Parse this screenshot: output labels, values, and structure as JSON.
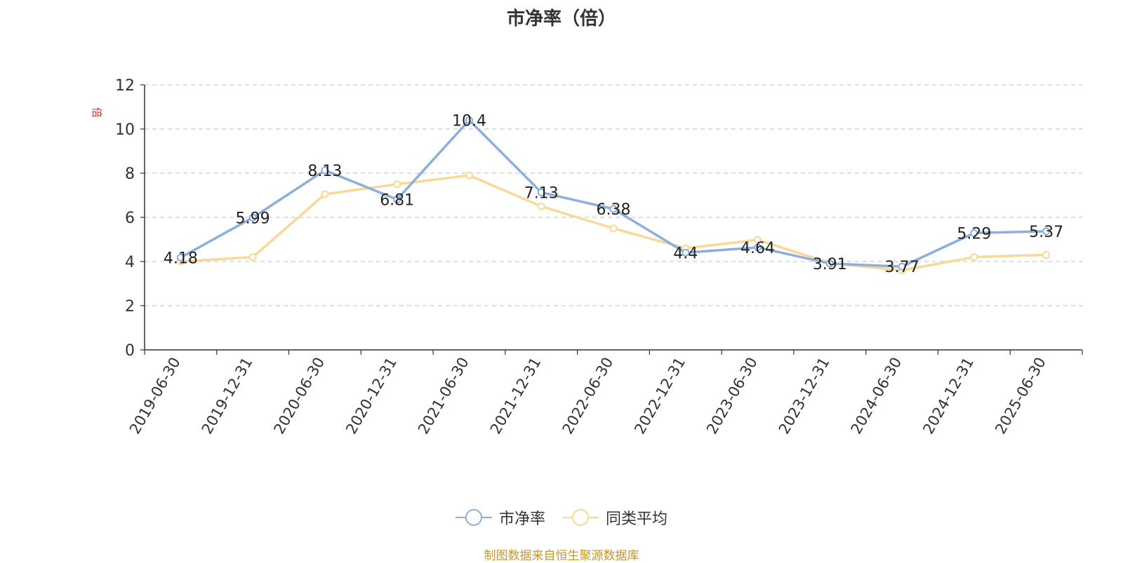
{
  "title": "市净率（倍）",
  "source_note": "制图数据来自恒生聚源数据库",
  "colors": {
    "series_1": "#8eaedb",
    "series_2": "#f9d99a",
    "axis": "#333333",
    "grid": "#cccccc",
    "unit": "#e0302a",
    "footer": "#c8962a"
  },
  "chart_data": {
    "type": "line",
    "title": "市净率（倍）",
    "ylabel": "倍",
    "xlabel": "",
    "ylim": [
      0,
      12
    ],
    "y_ticks": [
      0,
      2,
      4,
      6,
      8,
      10,
      12
    ],
    "grid": "horizontal dashed",
    "legend_position": "bottom-center",
    "categories": [
      "2019-06-30",
      "2019-12-31",
      "2020-06-30",
      "2020-12-31",
      "2021-06-30",
      "2021-12-31",
      "2022-06-30",
      "2022-12-31",
      "2023-06-30",
      "2023-12-31",
      "2024-06-30",
      "2024-12-31",
      "2025-06-30"
    ],
    "series": [
      {
        "name": "市净率",
        "values": [
          4.18,
          5.99,
          8.13,
          6.81,
          10.4,
          7.13,
          6.38,
          4.4,
          4.64,
          3.91,
          3.77,
          5.29,
          5.37
        ],
        "labels": [
          "4.18",
          "5.99",
          "8.13",
          "6.81",
          "10.4",
          "7.13",
          "6.38",
          "4.4",
          "4.64",
          "3.91",
          "3.77",
          "5.29",
          "5.37"
        ]
      },
      {
        "name": "同类平均",
        "values": [
          4.0,
          4.2,
          7.05,
          7.5,
          7.9,
          6.5,
          5.5,
          4.6,
          4.98,
          3.93,
          3.6,
          4.2,
          4.3
        ]
      }
    ]
  }
}
